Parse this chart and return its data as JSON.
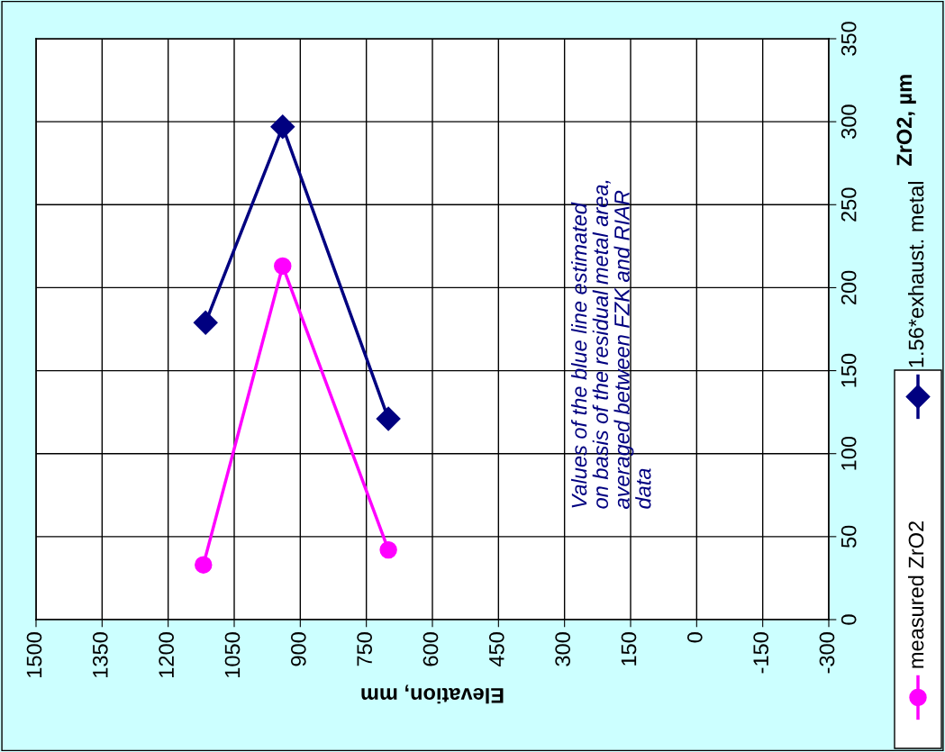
{
  "chart_data": {
    "type": "line",
    "xlabel": "Elevation, mm",
    "ylabel": "ZrO2, µm",
    "series": [
      {
        "name": "measured ZrO2",
        "color": "#ff00ff",
        "x": [
          1120,
          940,
          700
        ],
        "values": [
          33,
          213,
          42
        ],
        "marker": "circle"
      },
      {
        "name": "1.56*exhaust. metal",
        "color": "#000080",
        "x": [
          1115,
          940,
          700
        ],
        "values": [
          179,
          297,
          121
        ],
        "marker": "diamond"
      }
    ],
    "xlim": [
      1500,
      -300
    ],
    "xticks": [
      1500,
      1350,
      1200,
      1050,
      900,
      750,
      600,
      450,
      300,
      150,
      0,
      -150,
      -300
    ],
    "ylim": [
      0,
      350
    ],
    "yticks": [
      0,
      50,
      100,
      150,
      200,
      250,
      300,
      350
    ],
    "grid": true,
    "legend": "bottom right",
    "line_style": "solid",
    "annotations": [
      "Values of the blue line estimated\non basis of the residual metal area,\naveraged between FZK and RIAR\ndata"
    ]
  }
}
